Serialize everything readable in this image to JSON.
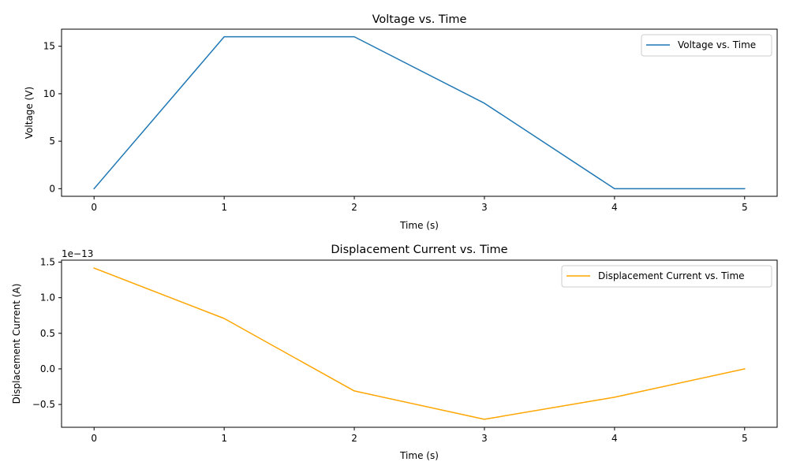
{
  "chart_data": [
    {
      "type": "line",
      "title": "Voltage vs. Time",
      "xlabel": "Time (s)",
      "ylabel": "Voltage (V)",
      "x": [
        0,
        1,
        2,
        3,
        4,
        5
      ],
      "series": [
        {
          "name": "Voltage vs. Time",
          "color": "#1f77b4",
          "values": [
            0,
            16,
            16,
            9,
            0,
            0
          ]
        }
      ],
      "xlim": [
        -0.25,
        5.25
      ],
      "ylim": [
        -0.8,
        16.8
      ],
      "xticks": [
        "0",
        "1",
        "2",
        "3",
        "4",
        "5"
      ],
      "yticks": [
        "0",
        "5",
        "10",
        "15"
      ],
      "offset_text": "",
      "grid": false,
      "legend": "top-right"
    },
    {
      "type": "line",
      "title": "Displacement Current vs. Time",
      "xlabel": "Time (s)",
      "ylabel": "Displacement Current (A)",
      "x": [
        0,
        1,
        2,
        3,
        4,
        5
      ],
      "series": [
        {
          "name": "Displacement Current vs. Time",
          "color": "#ffa500",
          "values": [
            1.416e-13,
            7.08e-14,
            -3.1e-14,
            -7.08e-14,
            -3.98e-14,
            0
          ]
        }
      ],
      "xlim": [
        -0.25,
        5.25
      ],
      "ylim": [
        -8.204e-14,
        1.5278e-13
      ],
      "xticks": [
        "0",
        "1",
        "2",
        "3",
        "4",
        "5"
      ],
      "yticks": [
        "−0.5",
        "0.0",
        "0.5",
        "1.0",
        "1.5"
      ],
      "offset_text": "1e−13",
      "grid": false,
      "legend": "top-right"
    }
  ]
}
